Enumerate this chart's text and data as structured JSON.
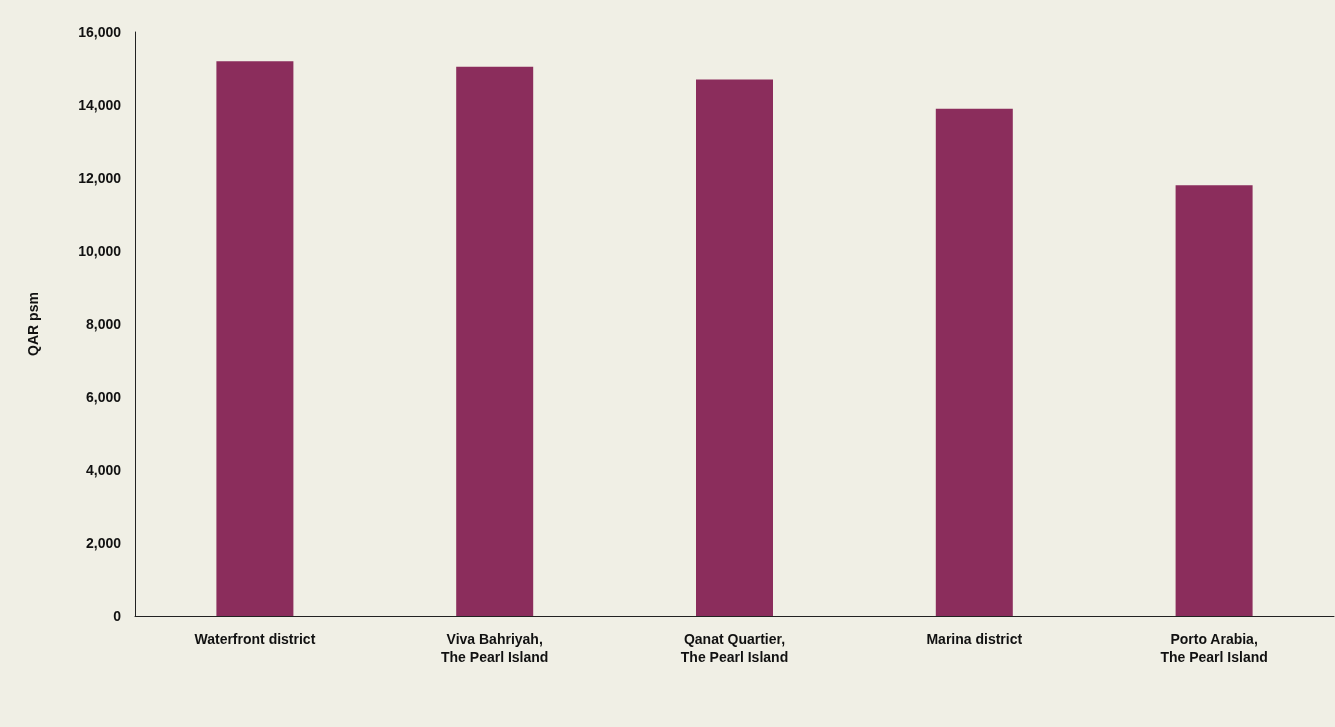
{
  "chart_data": {
    "type": "bar",
    "ylabel": "QAR psm",
    "categories": [
      "Waterfront district",
      "Viva Bahriyah,\nThe Pearl Island",
      "Qanat Quartier,\nThe Pearl Island",
      "Marina district",
      "Porto Arabia,\nThe Pearl Island"
    ],
    "values": [
      15200,
      15050,
      14700,
      13900,
      11800
    ],
    "color": "#8b2d5c",
    "ylim": [
      0,
      16000
    ],
    "yticks": [
      0,
      {
        "value": 2000,
        "label": "2,000"
      },
      {
        "value": 4000,
        "label": "4,000"
      },
      {
        "value": 6000,
        "label": "6,000"
      },
      {
        "value": 8000,
        "label": "8,000"
      },
      {
        "value": 10000,
        "label": "10,000"
      },
      {
        "value": 12000,
        "label": "12,000"
      },
      {
        "value": 14000,
        "label": "14,000"
      },
      {
        "value": 16000,
        "label": "16,000"
      }
    ],
    "grid": false
  }
}
